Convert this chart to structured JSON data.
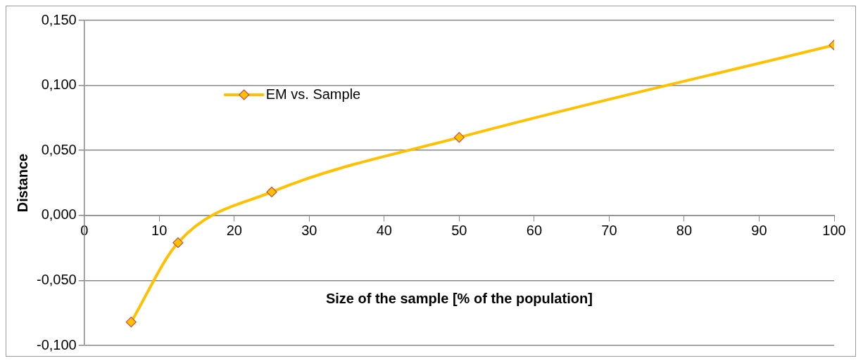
{
  "chart_data": {
    "type": "line",
    "xlabel": "Size of the sample [% of the population]",
    "ylabel": "Distance",
    "x": [
      6.25,
      12.5,
      25,
      50,
      100
    ],
    "series": [
      {
        "name": "EM vs. Sample",
        "color": "#ffc000",
        "values": [
          -0.082,
          -0.021,
          0.018,
          0.06,
          0.131
        ]
      }
    ],
    "xlim": [
      0,
      100
    ],
    "xticks": [
      0,
      10,
      20,
      30,
      40,
      50,
      60,
      70,
      80,
      90,
      100
    ],
    "ylim": [
      -0.1,
      0.15
    ],
    "yticks": [
      {
        "value": -0.1,
        "label": "-0,100"
      },
      {
        "value": -0.05,
        "label": "-0,050"
      },
      {
        "value": 0,
        "label": "0,000"
      },
      {
        "value": 0.05,
        "label": "0,050"
      },
      {
        "value": 0.1,
        "label": "0,100"
      },
      {
        "value": 0.15,
        "label": "0,150"
      }
    ],
    "grid": "y",
    "legend": "top left",
    "marker": "diamond",
    "line_style": "solid"
  }
}
